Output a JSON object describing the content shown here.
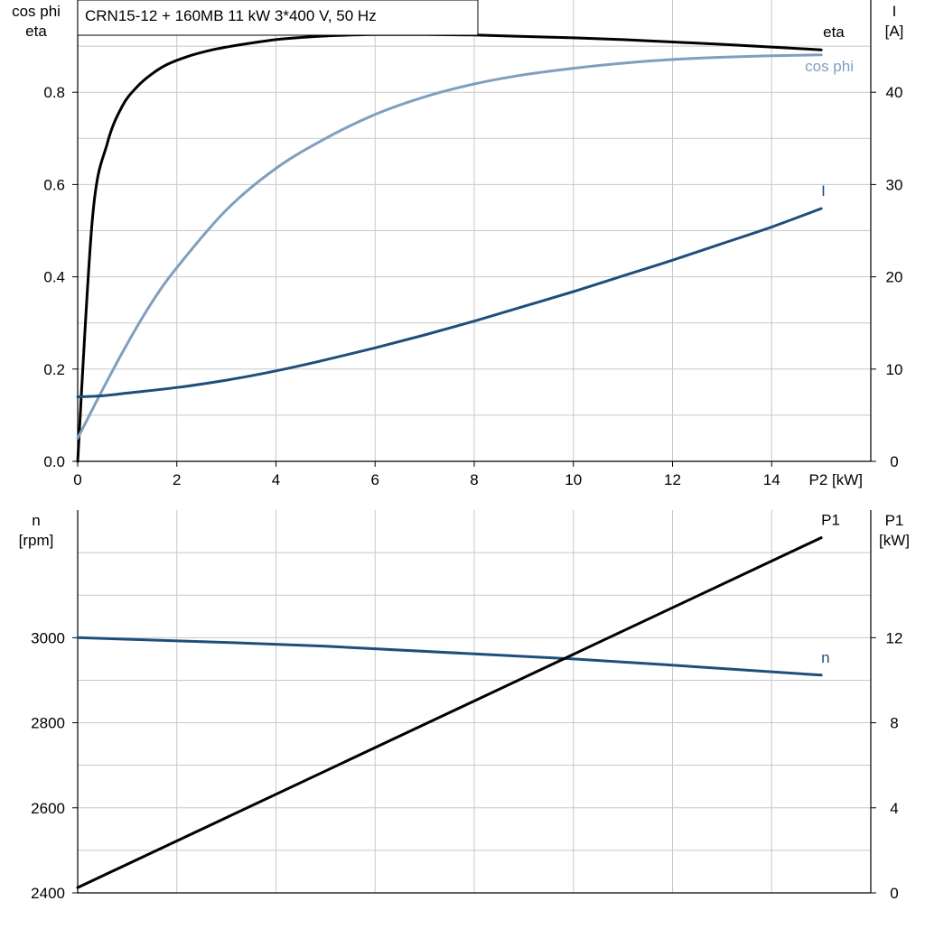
{
  "title": "CRN15-12 + 160MB   11 kW   3*400 V, 50 Hz",
  "colors": {
    "grid": "#c8c8c8",
    "axis": "#000000",
    "eta": "#000000",
    "cos_phi": "#7f9fbf",
    "current": "#1f4e7a",
    "speed": "#1f4e7a",
    "p1": "#000000",
    "label_dark": "#000000"
  },
  "chart_data": [
    {
      "type": "line",
      "title": "CRN15-12 + 160MB   11 kW   3*400 V, 50 Hz",
      "xlabel": "P2 [kW]",
      "xlim": [
        0,
        16
      ],
      "x_ticks": [
        0,
        2,
        4,
        6,
        8,
        10,
        12,
        14
      ],
      "x_grid_step": 2,
      "grid": true,
      "left_axis": {
        "label_lines": [
          "cos phi",
          "eta"
        ],
        "ylim": [
          0,
          1.0
        ],
        "ticks": [
          0.0,
          0.2,
          0.4,
          0.6,
          0.8
        ],
        "tick_labels": [
          "0.0",
          "0.2",
          "0.4",
          "0.6",
          "0.8"
        ],
        "grid_step": 0.1
      },
      "right_axis": {
        "label_lines": [
          "I",
          "[A]"
        ],
        "ylim": [
          0,
          50
        ],
        "ticks": [
          0,
          10,
          20,
          30,
          40
        ],
        "tick_labels": [
          "0",
          "10",
          "20",
          "30",
          "40"
        ]
      },
      "series": [
        {
          "name": "eta",
          "axis": "left",
          "color_key": "eta",
          "x": [
            0,
            0.3,
            0.6,
            0.9,
            1.2,
            1.5,
            1.8,
            2.2,
            2.6,
            3,
            4,
            5,
            6,
            7,
            8,
            9,
            10,
            11,
            12,
            13,
            14,
            15
          ],
          "y": [
            0.0,
            0.53,
            0.69,
            0.77,
            0.812,
            0.84,
            0.86,
            0.877,
            0.889,
            0.898,
            0.914,
            0.922,
            0.925,
            0.925,
            0.924,
            0.921,
            0.918,
            0.914,
            0.909,
            0.904,
            0.898,
            0.892
          ]
        },
        {
          "name": "cos phi",
          "axis": "left",
          "color_key": "cos_phi",
          "x": [
            0,
            0.5,
            1,
            1.5,
            2,
            3,
            4,
            5,
            6,
            7,
            8,
            9,
            10,
            11,
            12,
            13,
            14,
            15
          ],
          "y": [
            0.05,
            0.155,
            0.255,
            0.345,
            0.42,
            0.545,
            0.635,
            0.7,
            0.752,
            0.79,
            0.818,
            0.838,
            0.852,
            0.863,
            0.871,
            0.876,
            0.879,
            0.881
          ]
        },
        {
          "name": "I",
          "axis": "right",
          "color_key": "current",
          "x": [
            0,
            0.5,
            1,
            2,
            3,
            4,
            5,
            6,
            7,
            8,
            9,
            10,
            11,
            12,
            13,
            14,
            15
          ],
          "y": [
            7.0,
            7.1,
            7.4,
            8.0,
            8.8,
            9.8,
            11.0,
            12.3,
            13.7,
            15.2,
            16.8,
            18.4,
            20.1,
            21.8,
            23.6,
            25.4,
            27.4
          ]
        }
      ]
    },
    {
      "type": "line",
      "xlim": [
        0,
        16
      ],
      "x_grid_step": 2,
      "grid": true,
      "left_axis": {
        "label_lines": [
          "n",
          "[rpm]"
        ],
        "ylim": [
          2400,
          3300
        ],
        "ticks": [
          2400,
          2600,
          2800,
          3000
        ],
        "tick_labels": [
          "2400",
          "2600",
          "2800",
          "3000"
        ],
        "grid_step": 100
      },
      "right_axis": {
        "label_lines": [
          "P1",
          "[kW]"
        ],
        "ylim": [
          0,
          18
        ],
        "ticks": [
          0,
          4,
          8,
          12
        ],
        "tick_labels": [
          "0",
          "4",
          "8",
          "12"
        ]
      },
      "series": [
        {
          "name": "n",
          "axis": "left",
          "color_key": "speed",
          "x": [
            0,
            5,
            10,
            15
          ],
          "y": [
            3000,
            2980,
            2950,
            2912
          ]
        },
        {
          "name": "P1",
          "axis": "right",
          "color_key": "p1",
          "x": [
            0,
            15
          ],
          "y": [
            0.25,
            16.7
          ]
        }
      ]
    }
  ]
}
